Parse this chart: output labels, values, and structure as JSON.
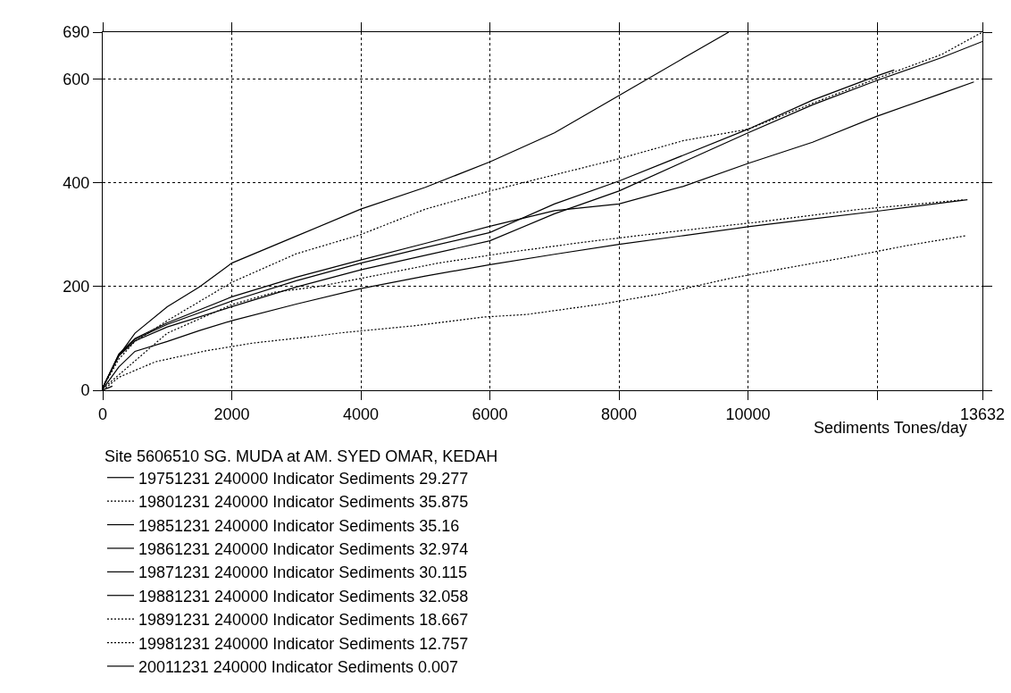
{
  "chart_data": {
    "type": "line",
    "xlabel": "Sediments Tones/day",
    "legend_title": "Site 5606510 SG. MUDA at AM. SYED OMAR, KEDAH",
    "legend": "bottom",
    "grid": true,
    "xlim": [
      0,
      13632
    ],
    "xticks": [
      0,
      2000,
      4000,
      6000,
      8000,
      10000,
      {
        "value": 12000,
        "label": null
      },
      13632
    ],
    "ylim": [
      0,
      690
    ],
    "yticks": [
      0,
      200,
      400,
      600,
      690
    ],
    "series": [
      {
        "name": "19751231 240000 Indicator Sediments 29.277",
        "color": "#000000",
        "line_style": "solid",
        "x": [
          0,
          250,
          500,
          1000,
          1500,
          2000,
          3000,
          4000,
          5000,
          6000,
          7000,
          8000,
          9000,
          9700
        ],
        "values": [
          5,
          67,
          110,
          161,
          199,
          245,
          297,
          349,
          391,
          440,
          496,
          568,
          640,
          690
        ]
      },
      {
        "name": "19801231 240000 Indicator Sediments 35.875",
        "color": "#000000",
        "line_style": "dotted",
        "x": [
          0,
          250,
          500,
          1000,
          2000,
          3000,
          4000,
          5000,
          6000,
          7000,
          8000,
          9000,
          10000,
          11000,
          12000,
          13000,
          13632
        ],
        "values": [
          5,
          60,
          94,
          134,
          208,
          263,
          300,
          349,
          384,
          415,
          446,
          481,
          503,
          553,
          601,
          647,
          690
        ]
      },
      {
        "name": "19851231 240000 Indicator Sediments 35.16",
        "color": "#000000",
        "line_style": "solid",
        "x": [
          0,
          250,
          500,
          1000,
          2000,
          3000,
          4000,
          5000,
          6000,
          7000,
          8000,
          9000,
          10000,
          11000,
          12000,
          12265
        ],
        "values": [
          5,
          68,
          98,
          127,
          172,
          211,
          245,
          275,
          304,
          359,
          403,
          453,
          503,
          559,
          606,
          617
        ]
      },
      {
        "name": "19861231 240000 Indicator Sediments 32.974",
        "color": "#000000",
        "line_style": "solid",
        "x": [
          0,
          250,
          500,
          1000,
          2000,
          3000,
          4000,
          5000,
          6000,
          7000,
          8000,
          9000,
          10000,
          11000,
          12000,
          13000,
          13632
        ],
        "values": [
          5,
          66,
          95,
          122,
          161,
          199,
          232,
          260,
          288,
          340,
          384,
          440,
          496,
          550,
          597,
          641,
          672
        ]
      },
      {
        "name": "19871231 240000 Indicator Sediments 30.115",
        "color": "#000000",
        "line_style": "solid",
        "x": [
          0,
          250,
          500,
          1000,
          2000,
          3000,
          4000,
          5000,
          6000,
          7000,
          8000,
          9000,
          10000,
          11000,
          12000,
          13000,
          13500
        ],
        "values": [
          5,
          70,
          100,
          130,
          180,
          218,
          251,
          283,
          316,
          346,
          359,
          393,
          437,
          478,
          528,
          572,
          594
        ]
      },
      {
        "name": "19881231 240000 Indicator Sediments 32.058",
        "color": "#000000",
        "line_style": "solid",
        "x": [
          0,
          250,
          500,
          1000,
          1500,
          2000,
          3000,
          4000,
          5000,
          6000,
          7000,
          8000,
          9000,
          10000,
          11000,
          12000,
          13400
        ],
        "values": [
          2,
          45,
          75,
          94,
          115,
          134,
          166,
          196,
          220,
          242,
          262,
          281,
          298,
          315,
          330,
          345,
          367
        ]
      },
      {
        "name": "19891231 240000 Indicator Sediments 18.667",
        "color": "#000000",
        "line_style": "dotted",
        "x": [
          0,
          1000,
          2000,
          2670,
          3300,
          3940,
          5200,
          6248,
          7435,
          8710,
          10150,
          11690,
          13340
        ],
        "values": [
          3,
          110,
          165,
          189,
          199,
          214,
          245,
          265,
          285,
          304,
          324,
          348,
          367
        ]
      },
      {
        "name": "19981231 240000 Indicator Sediments 12.757",
        "color": "#000000",
        "line_style": "dotted",
        "x": [
          0,
          250,
          819,
          1600,
          2330,
          3210,
          3720,
          4810,
          5890,
          6570,
          7730,
          8660,
          9700,
          10570,
          11520,
          12470,
          13390
        ],
        "values": [
          0,
          25,
          55,
          76,
          91,
          103,
          111,
          124,
          141,
          146,
          166,
          186,
          215,
          235,
          256,
          279,
          298
        ]
      },
      {
        "name": "20011231 240000 Indicator Sediments 0.007",
        "color": "#000000",
        "line_style": "solid",
        "x": [
          0,
          150
        ],
        "values": [
          0,
          8
        ]
      }
    ]
  }
}
